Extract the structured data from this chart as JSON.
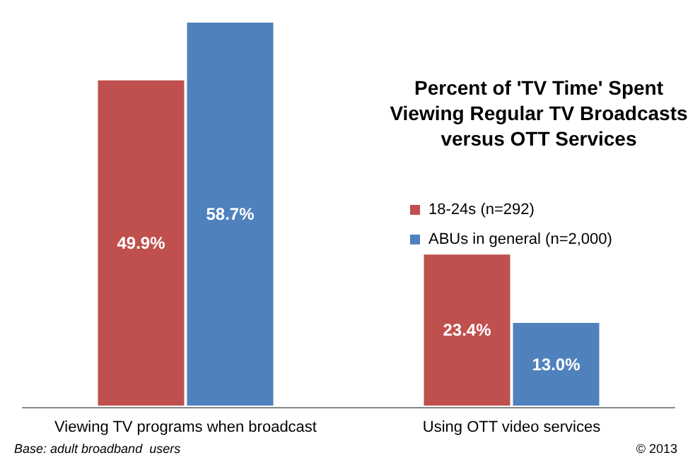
{
  "chart_data": {
    "type": "bar",
    "title": "Percent of 'TV Time' Spent\nViewing Regular TV Broadcasts\nversus OTT Services",
    "categories": [
      "Viewing TV programs when broadcast",
      "Using OTT video services"
    ],
    "series": [
      {
        "name": "18-24s (n=292)",
        "color": "#c0504d",
        "values": [
          49.9,
          23.4
        ],
        "value_labels": [
          "49.9%",
          "23.4%"
        ]
      },
      {
        "name": "ABUs in general (n=2,000)",
        "color": "#4f81bd",
        "values": [
          58.7,
          13.0
        ],
        "value_labels": [
          "58.7%",
          "13.0%"
        ]
      }
    ],
    "legend": "right",
    "annotations": [
      "Base: adult broadband  users",
      "© 2013"
    ]
  }
}
